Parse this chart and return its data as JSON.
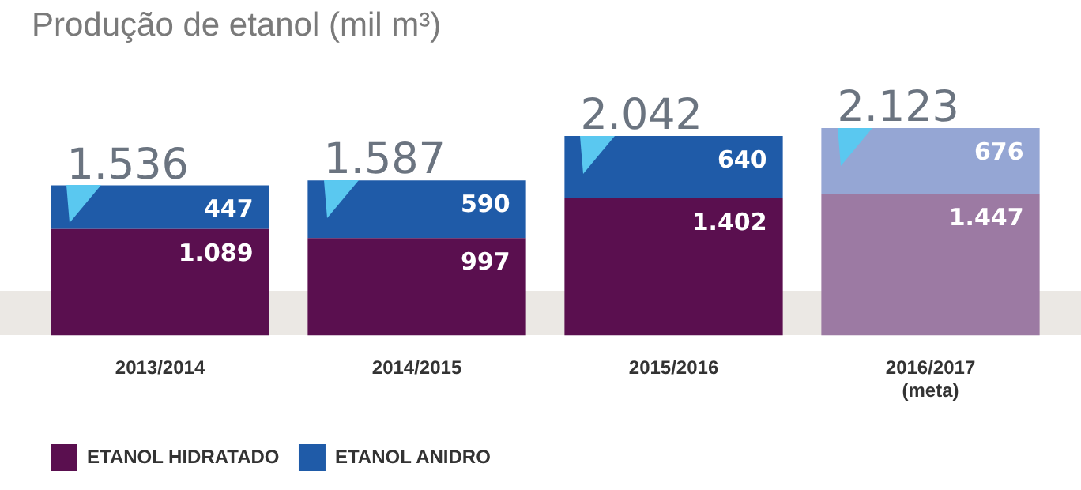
{
  "chart_data": {
    "type": "bar",
    "title": "Produção de etanol (mil m³)",
    "stacked": true,
    "tick_labels": "x",
    "grid": false,
    "legend": "bottom left",
    "categories": [
      "2013/2014",
      "2014/2015",
      "2015/2016",
      "2016/2017\n(meta)"
    ],
    "series": [
      {
        "name": "ETANOL HIDRATADO",
        "colors": [
          "#5a0f4f",
          "#5a0f4f",
          "#5a0f4f",
          "#9c7aa3"
        ],
        "values": [
          1089,
          997,
          1402,
          1447
        ],
        "value_labels": [
          "1.089",
          "997",
          "1.402",
          "1.447"
        ]
      },
      {
        "name": "ETANOL ANIDRO",
        "colors": [
          "#1f5ba8",
          "#1f5ba8",
          "#1f5ba8",
          "#95a6d4"
        ],
        "values": [
          447,
          590,
          640,
          676
        ],
        "value_labels": [
          "447",
          "590",
          "640",
          "676"
        ]
      }
    ],
    "totals": [
      "1.536",
      "1.587",
      "2.042",
      "2.123"
    ]
  }
}
